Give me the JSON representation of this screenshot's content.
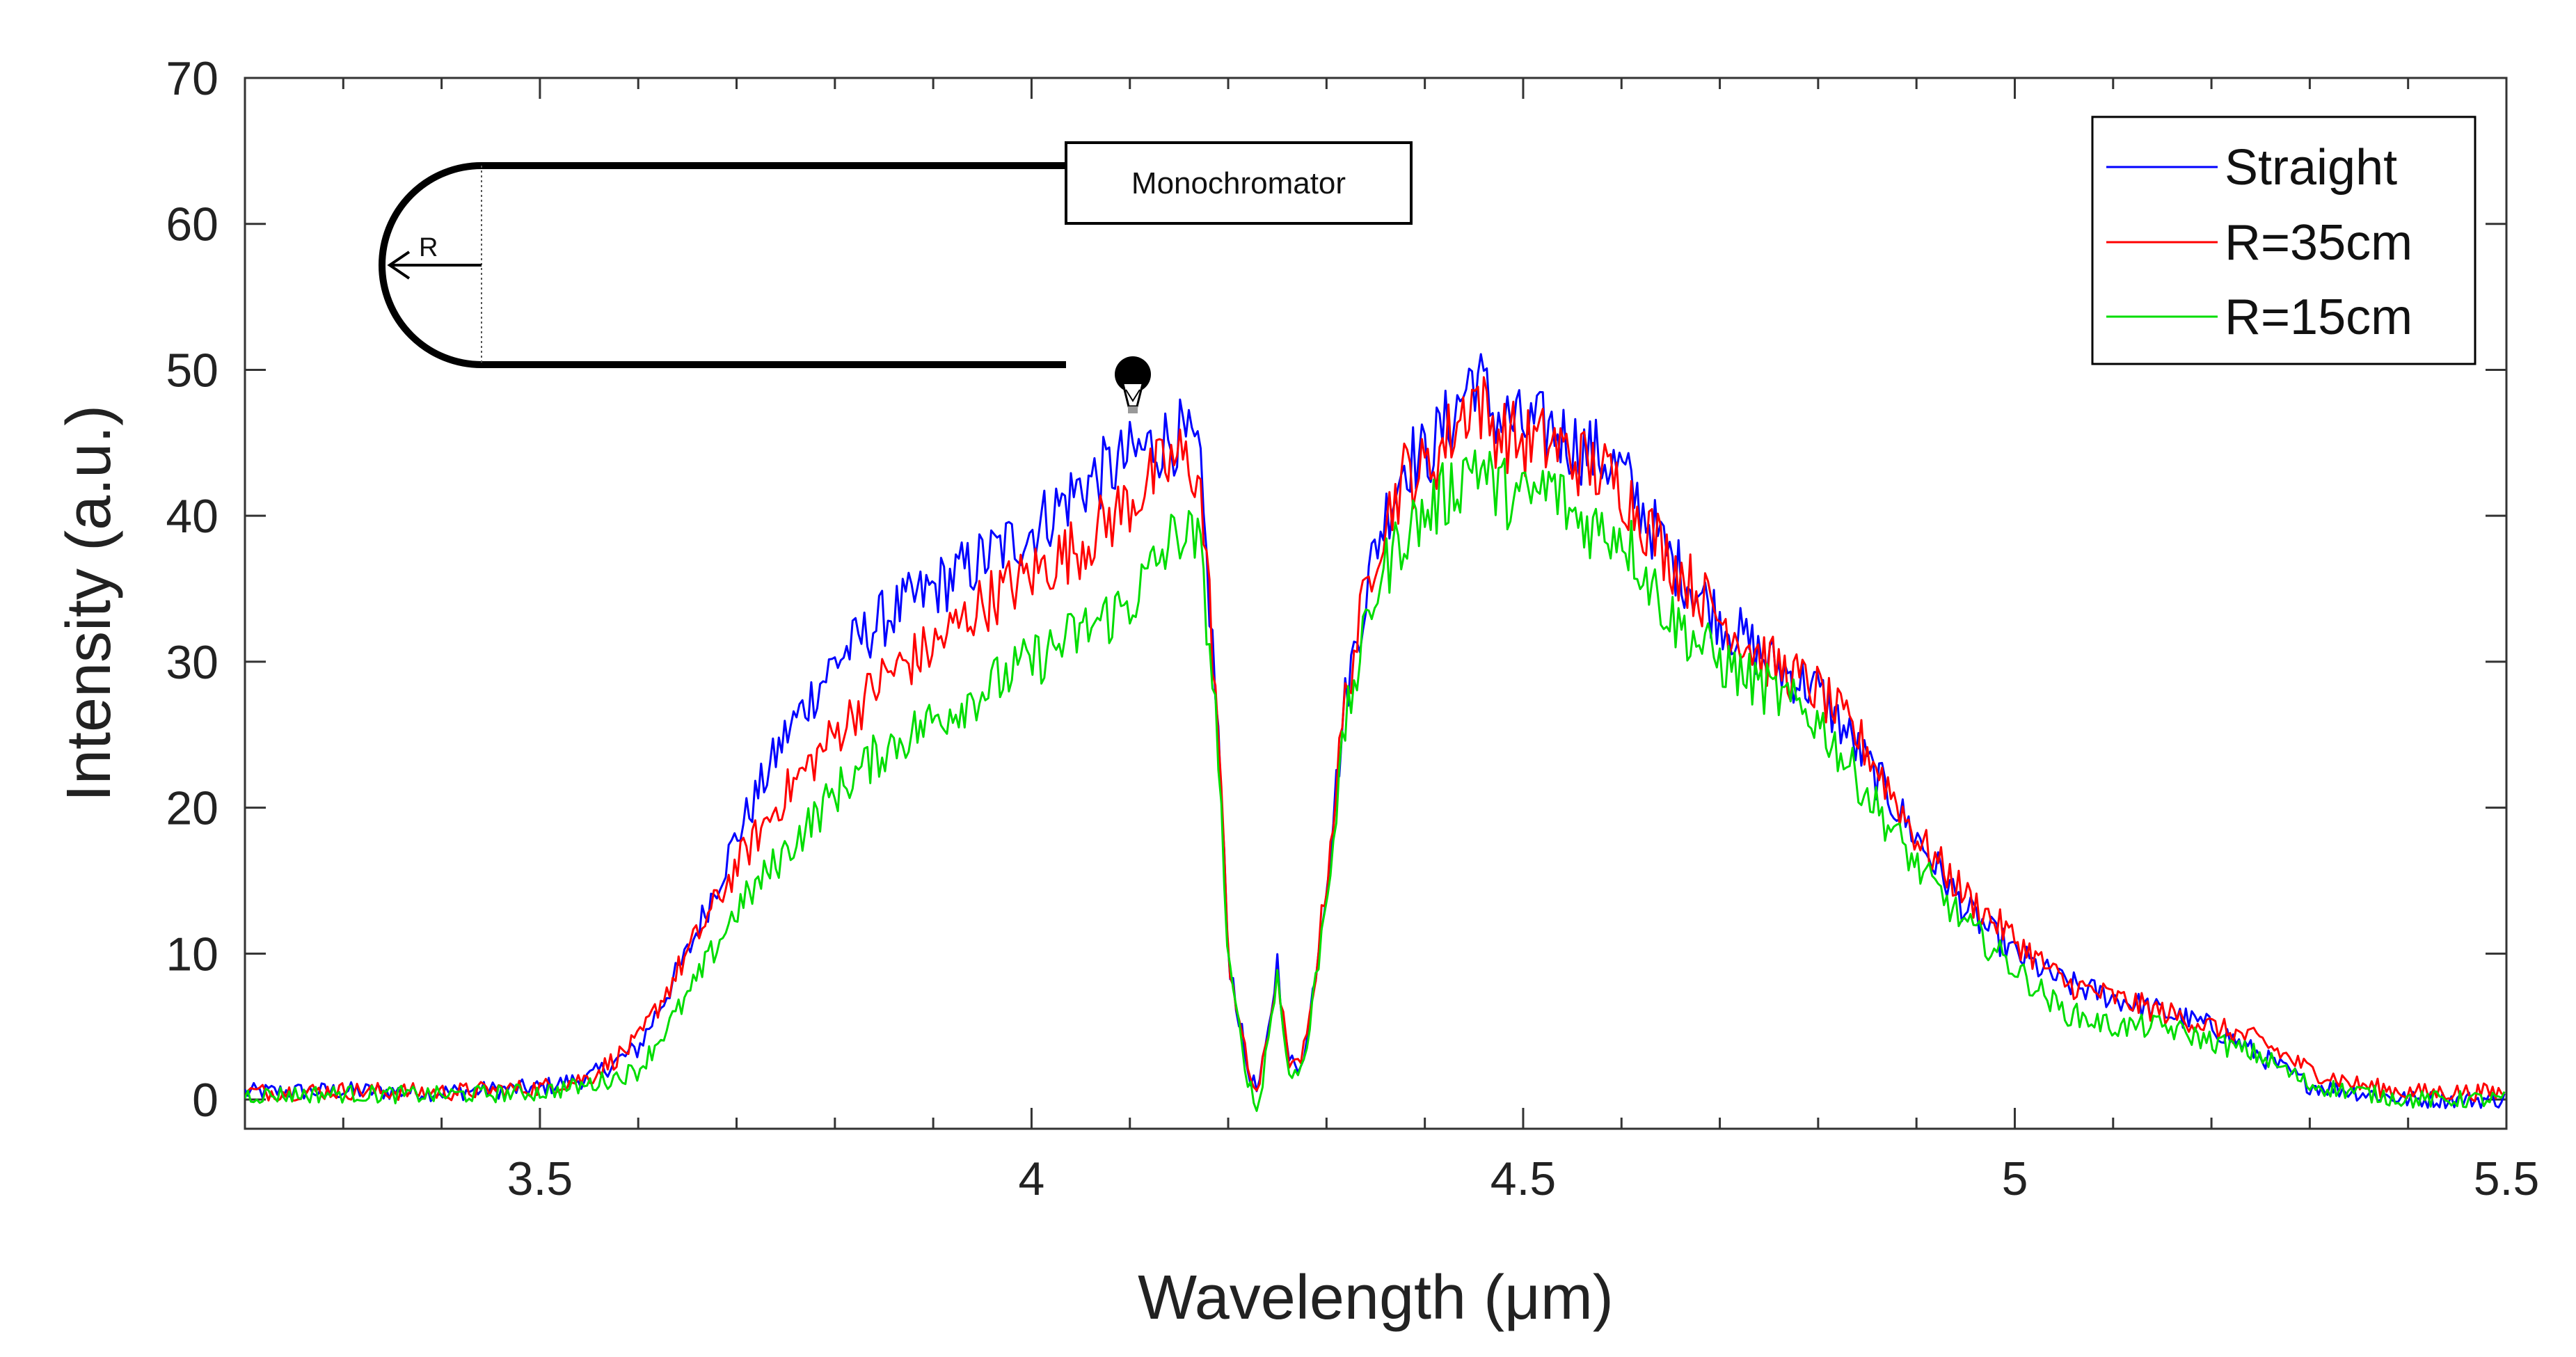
{
  "chart_data": {
    "type": "line",
    "xlabel": "Wavelength (μm)",
    "ylabel": "Intensity (a.u.)",
    "xlim": [
      3.2,
      5.5
    ],
    "ylim": [
      -2,
      70
    ],
    "xticks": [
      3.5,
      4,
      4.5,
      5,
      5.5
    ],
    "xtick_labels": [
      "3.5",
      "4",
      "4.5",
      "5",
      "5.5"
    ],
    "yticks": [
      0,
      10,
      20,
      30,
      40,
      50,
      60,
      70
    ],
    "ytick_labels": [
      "0",
      "10",
      "20",
      "30",
      "40",
      "50",
      "60",
      "70"
    ],
    "grid": false,
    "legend_position": "top-right",
    "x": [
      3.2,
      3.3,
      3.4,
      3.5,
      3.55,
      3.6,
      3.65,
      3.7,
      3.75,
      3.8,
      3.85,
      3.9,
      3.95,
      4.0,
      4.05,
      4.1,
      4.13,
      4.15,
      4.17,
      4.18,
      4.19,
      4.2,
      4.22,
      4.23,
      4.24,
      4.25,
      4.26,
      4.27,
      4.28,
      4.3,
      4.32,
      4.35,
      4.38,
      4.4,
      4.43,
      4.45,
      4.47,
      4.5,
      4.53,
      4.55,
      4.58,
      4.6,
      4.65,
      4.7,
      4.75,
      4.8,
      4.85,
      4.9,
      4.95,
      5.0,
      5.05,
      5.1,
      5.15,
      5.2,
      5.25,
      5.3,
      5.35,
      5.4,
      5.45,
      5.5
    ],
    "series": [
      {
        "name": "Straight",
        "color": "#0000ff",
        "values": [
          0.5,
          0.6,
          0.5,
          0.8,
          1.5,
          3.5,
          10,
          18,
          25,
          30,
          33,
          35,
          37,
          39,
          42,
          44,
          45,
          45.5,
          44,
          35,
          25,
          10,
          2,
          0.5,
          4,
          9.5,
          3,
          2,
          4,
          15,
          28,
          38,
          44,
          44,
          47,
          50,
          47,
          46,
          46,
          45,
          44,
          43,
          37,
          33,
          30,
          28,
          23,
          18,
          13,
          10,
          8,
          7,
          6,
          5,
          3,
          1,
          0.5,
          0,
          0,
          0
        ]
      },
      {
        "name": "R=35cm",
        "color": "#ff0000",
        "values": [
          0.5,
          0.6,
          0.5,
          0.8,
          1.5,
          4,
          10,
          16,
          21,
          25,
          29,
          31,
          34,
          36,
          38,
          41,
          43,
          44,
          43,
          35,
          25,
          10,
          2,
          0.5,
          4,
          9,
          3,
          2,
          4,
          15,
          28,
          38,
          43,
          43,
          46,
          48.5,
          46,
          45,
          45,
          44,
          43,
          42,
          37,
          33,
          30,
          28,
          24,
          18,
          14,
          11,
          8,
          7,
          6,
          5,
          4,
          2,
          1,
          0.5,
          0.5,
          0.5
        ]
      },
      {
        "name": "R=15cm",
        "color": "#00dd00",
        "values": [
          0.3,
          0.4,
          0.3,
          0.5,
          1.0,
          2,
          7,
          13,
          17,
          21,
          24,
          26,
          28,
          30,
          32,
          34,
          37,
          39,
          38,
          32,
          24,
          9,
          1.5,
          -1,
          4,
          8.5,
          2.5,
          1.5,
          3.5,
          14,
          26,
          35,
          39,
          40,
          42,
          44,
          42,
          41,
          42,
          40,
          39,
          39,
          33,
          30,
          28,
          26,
          21,
          16,
          12,
          9,
          6,
          5,
          5,
          4,
          3,
          1,
          0.5,
          0,
          0,
          0
        ]
      }
    ]
  },
  "legend": {
    "items": [
      {
        "label": "Straight",
        "color": "#0000ff"
      },
      {
        "label": "R=35cm",
        "color": "#ff0000"
      },
      {
        "label": "R=15cm",
        "color": "#00dd00"
      }
    ]
  },
  "inset": {
    "box_label": "Monochromator",
    "radius_label": "R",
    "bulb_icon": "light-bulb-icon"
  }
}
